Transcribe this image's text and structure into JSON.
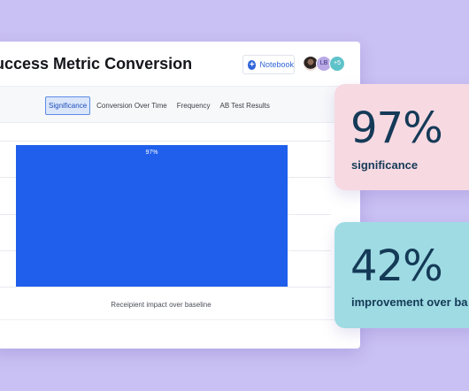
{
  "card": {
    "title": "uccess Metric Conversion",
    "notebook_label": "Notebook",
    "avatars": [
      "LB",
      "+5"
    ]
  },
  "tabs": [
    {
      "label": "Significance",
      "active": true
    },
    {
      "label": "Conversion Over Time",
      "active": false
    },
    {
      "label": "Frequency",
      "active": false
    },
    {
      "label": "AB Test Results",
      "active": false
    }
  ],
  "chart_data": {
    "type": "bar",
    "categories": [
      "Receipient impact over baseline"
    ],
    "values": [
      97
    ],
    "value_labels": [
      "97%"
    ],
    "xlabel": "Receipient impact over baseline",
    "ylim": [
      0,
      100
    ],
    "grid": true,
    "colors": [
      "#1f5fec"
    ]
  },
  "stats": [
    {
      "value": "97%",
      "label": "significance",
      "color": "#f7d9e2"
    },
    {
      "value": "42%",
      "label": "improvement over ba",
      "color": "#9fdbe3"
    }
  ]
}
